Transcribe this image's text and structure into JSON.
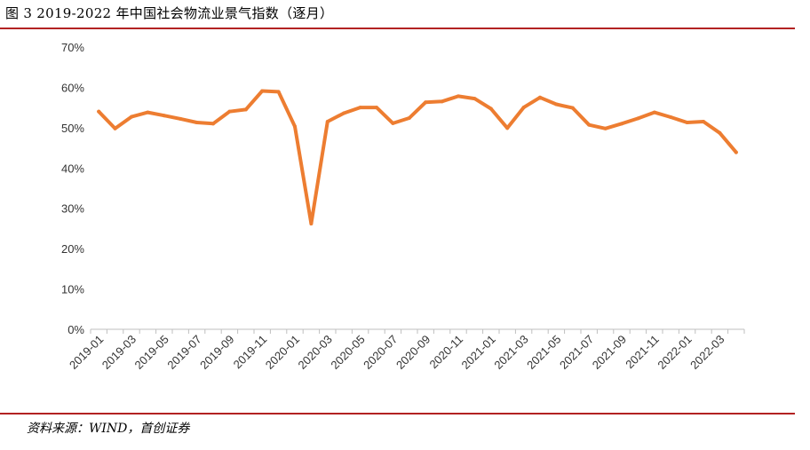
{
  "figure": {
    "title": "图 3 2019-2022 年中国社会物流业景气指数（逐月）",
    "source": "资料来源：WIND，首创证券"
  },
  "colors": {
    "line": "#ED7D31",
    "axis": "#bfbfbf",
    "rule": "#b22222"
  },
  "chart_data": {
    "type": "line",
    "title": "",
    "xlabel": "",
    "ylabel": "",
    "ylim": [
      0,
      70
    ],
    "y_ticks": [
      "0%",
      "10%",
      "20%",
      "30%",
      "40%",
      "50%",
      "60%",
      "70%"
    ],
    "grid": false,
    "x_tick_labels": [
      "2019-01",
      "2019-03",
      "2019-05",
      "2019-07",
      "2019-09",
      "2019-11",
      "2020-01",
      "2020-03",
      "2020-05",
      "2020-07",
      "2020-09",
      "2020-11",
      "2021-01",
      "2021-03",
      "2021-05",
      "2021-07",
      "2021-09",
      "2021-11",
      "2022-01",
      "2022-03"
    ],
    "x": [
      "2019-01",
      "2019-02",
      "2019-03",
      "2019-04",
      "2019-05",
      "2019-06",
      "2019-07",
      "2019-08",
      "2019-09",
      "2019-10",
      "2019-11",
      "2019-12",
      "2020-01",
      "2020-02",
      "2020-03",
      "2020-04",
      "2020-05",
      "2020-06",
      "2020-07",
      "2020-08",
      "2020-09",
      "2020-10",
      "2020-11",
      "2020-12",
      "2021-01",
      "2021-02",
      "2021-03",
      "2021-04",
      "2021-05",
      "2021-06",
      "2021-07",
      "2021-08",
      "2021-09",
      "2021-10",
      "2021-11",
      "2021-12",
      "2022-01",
      "2022-02",
      "2022-03",
      "2022-04"
    ],
    "series": [
      {
        "values": [
          54.0,
          49.8,
          52.7,
          53.8,
          53.0,
          52.2,
          51.3,
          51.0,
          54.0,
          54.5,
          59.1,
          58.9,
          50.3,
          26.2,
          51.5,
          53.6,
          55.0,
          55.0,
          51.1,
          52.4,
          56.3,
          56.5,
          57.8,
          57.2,
          54.7,
          49.9,
          55.0,
          57.5,
          55.8,
          54.9,
          50.7,
          49.8,
          51.0,
          52.3,
          53.8,
          52.6,
          51.3,
          51.5,
          48.7,
          43.9
        ]
      }
    ]
  }
}
